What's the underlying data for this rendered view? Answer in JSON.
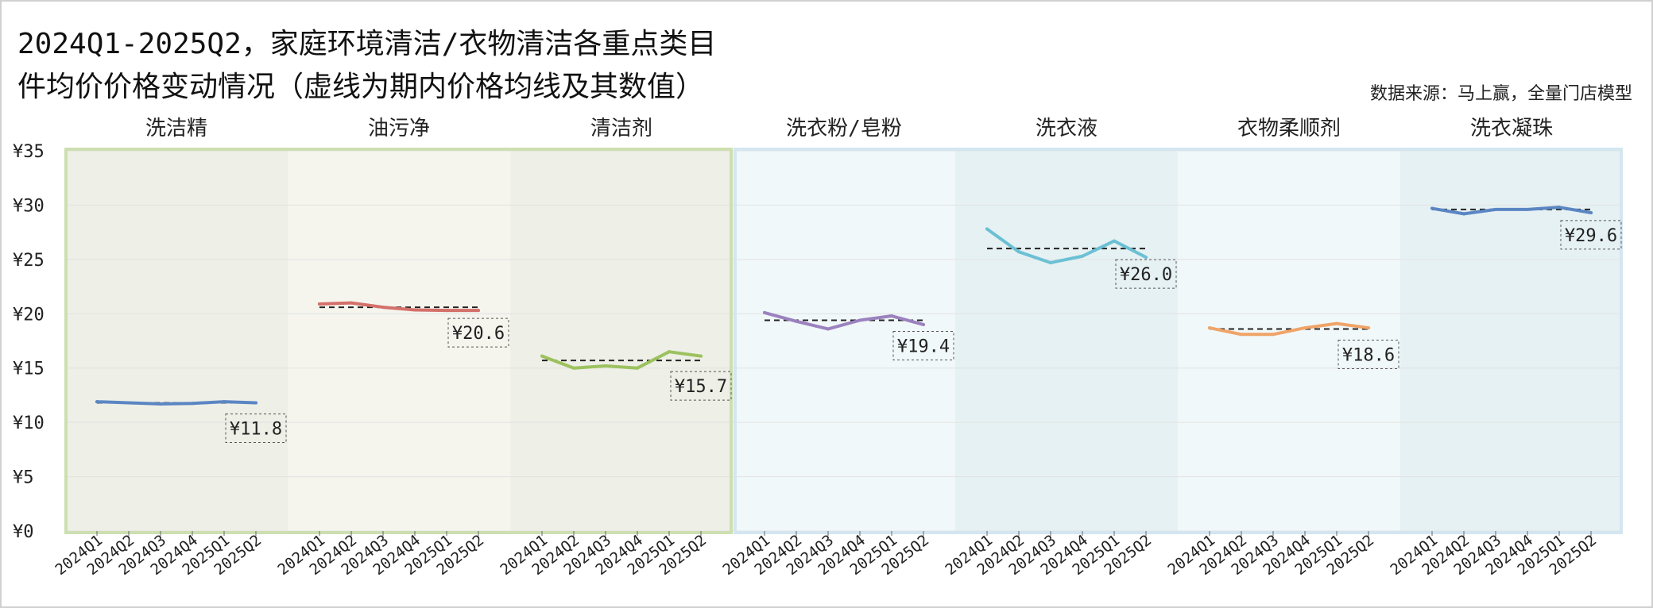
{
  "title_line1": "2024Q1-2025Q2，家庭环境清洁/衣物清洁各重点类目",
  "title_line2": "件均价价格变动情况（虚线为期内价格均线及其数值）",
  "source": "数据来源：马上赢，全量门店模型",
  "colors": {
    "group1_fill": "#f5f5ee",
    "group1_fill_alt": "#eeefe6",
    "group1_border": "#cddfb0",
    "group2_fill": "#f1f8f9",
    "group2_fill_alt": "#e6f1f3",
    "group2_border": "#d3e6f1"
  },
  "chart_data": {
    "type": "line",
    "ylim": [
      0,
      35
    ],
    "yticks": [
      0,
      5,
      10,
      15,
      20,
      25,
      30,
      35
    ],
    "ytick_labels": [
      "¥0",
      "¥5",
      "¥10",
      "¥15",
      "¥20",
      "¥25",
      "¥30",
      "¥35"
    ],
    "x": [
      "2024Q1",
      "2024Q2",
      "2024Q3",
      "2024Q4",
      "2025Q1",
      "2025Q2"
    ],
    "grid": true,
    "groups": [
      {
        "name": "家庭环境清洁",
        "panels": [
          0,
          1,
          2
        ]
      },
      {
        "name": "衣物清洁",
        "panels": [
          3,
          4,
          5,
          6
        ]
      }
    ],
    "panels": [
      {
        "name": "洗洁精",
        "color": "#5b86c4",
        "values": [
          11.9,
          11.8,
          11.7,
          11.75,
          11.9,
          11.8
        ],
        "mean": 11.8,
        "mean_label": "¥11.8"
      },
      {
        "name": "油污净",
        "color": "#d4706a",
        "values": [
          20.9,
          21.0,
          20.6,
          20.35,
          20.3,
          20.3
        ],
        "mean": 20.6,
        "mean_label": "¥20.6"
      },
      {
        "name": "清洁剂",
        "color": "#9cc25f",
        "values": [
          16.1,
          15.0,
          15.2,
          15.0,
          16.5,
          16.1
        ],
        "mean": 15.7,
        "mean_label": "¥15.7"
      },
      {
        "name": "洗衣粉/皂粉",
        "color": "#9b82bf",
        "values": [
          20.1,
          19.3,
          18.6,
          19.4,
          19.8,
          19.0
        ],
        "mean": 19.4,
        "mean_label": "¥19.4"
      },
      {
        "name": "洗衣液",
        "color": "#6cc0d4",
        "values": [
          27.8,
          25.7,
          24.7,
          25.3,
          26.7,
          25.2
        ],
        "mean": 26.0,
        "mean_label": "¥26.0"
      },
      {
        "name": "衣物柔顺剂",
        "color": "#f0a468",
        "values": [
          18.7,
          18.1,
          18.1,
          18.7,
          19.1,
          18.7
        ],
        "mean": 18.6,
        "mean_label": "¥18.6"
      },
      {
        "name": "洗衣凝珠",
        "color": "#5b86c4",
        "values": [
          29.7,
          29.2,
          29.6,
          29.6,
          29.8,
          29.3
        ],
        "mean": 29.6,
        "mean_label": "¥29.6"
      }
    ]
  }
}
